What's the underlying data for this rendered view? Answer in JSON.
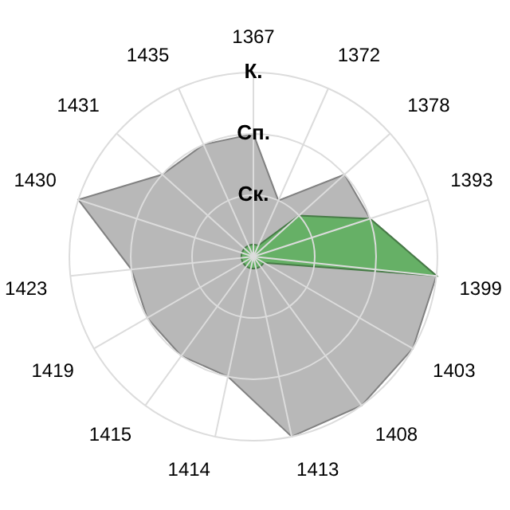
{
  "chart_data": {
    "type": "radar",
    "categories": [
      "1367",
      "1372",
      "1378",
      "1393",
      "1399",
      "1403",
      "1408",
      "1413",
      "1414",
      "1415",
      "1419",
      "1423",
      "1430",
      "1431",
      "1435"
    ],
    "series": [
      {
        "color": "#b8b8b8",
        "values": [
          2,
          1,
          2,
          2,
          3,
          3,
          3,
          3,
          2,
          2,
          2,
          2,
          3,
          2,
          2
        ]
      },
      {
        "color": "#66b066",
        "values": [
          0.2,
          0.2,
          1,
          2,
          3,
          0.2,
          0.2,
          0.2,
          0.2,
          0.2,
          0.2,
          0.2,
          0.2,
          0.2,
          0.2
        ]
      }
    ],
    "ylim": [
      0,
      3
    ],
    "yticks": [
      {
        "value": 1,
        "label": "Ск."
      },
      {
        "value": 2,
        "label": "Сп."
      },
      {
        "value": 3,
        "label": "К."
      }
    ],
    "grid": true,
    "legend": false
  }
}
